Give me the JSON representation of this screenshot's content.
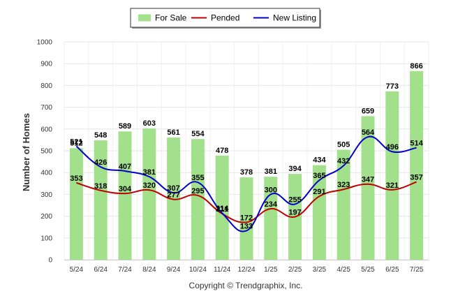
{
  "chart_data": {
    "type": "bar",
    "categories": [
      "5/24",
      "6/24",
      "7/24",
      "8/24",
      "9/24",
      "10/24",
      "11/24",
      "12/24",
      "1/25",
      "2/25",
      "3/25",
      "4/25",
      "5/25",
      "6/25",
      "7/25"
    ],
    "ylabel": "Number of Homes",
    "ylim": [
      0,
      1000
    ],
    "yticks": [
      0,
      100,
      200,
      300,
      400,
      500,
      600,
      700,
      800,
      900,
      1000
    ],
    "grid": true,
    "legend_position": "top-center",
    "series": [
      {
        "name": "For Sale",
        "kind": "bar",
        "color": "#a3e08b",
        "values": [
          512,
          548,
          589,
          603,
          561,
          554,
          478,
          378,
          381,
          394,
          434,
          505,
          659,
          773,
          866
        ]
      },
      {
        "name": "Pended",
        "kind": "line",
        "color": "#c00000",
        "values": [
          353,
          318,
          304,
          320,
          277,
          295,
          211,
          172,
          234,
          197,
          291,
          323,
          347,
          321,
          357
        ]
      },
      {
        "name": "New Listing",
        "kind": "line",
        "color": "#0000cc",
        "values": [
          521,
          426,
          407,
          381,
          307,
          355,
          214,
          133,
          300,
          255,
          365,
          432,
          564,
          496,
          514
        ]
      }
    ]
  },
  "footer": {
    "copyright": "Copyright © Trendgraphix, Inc."
  }
}
